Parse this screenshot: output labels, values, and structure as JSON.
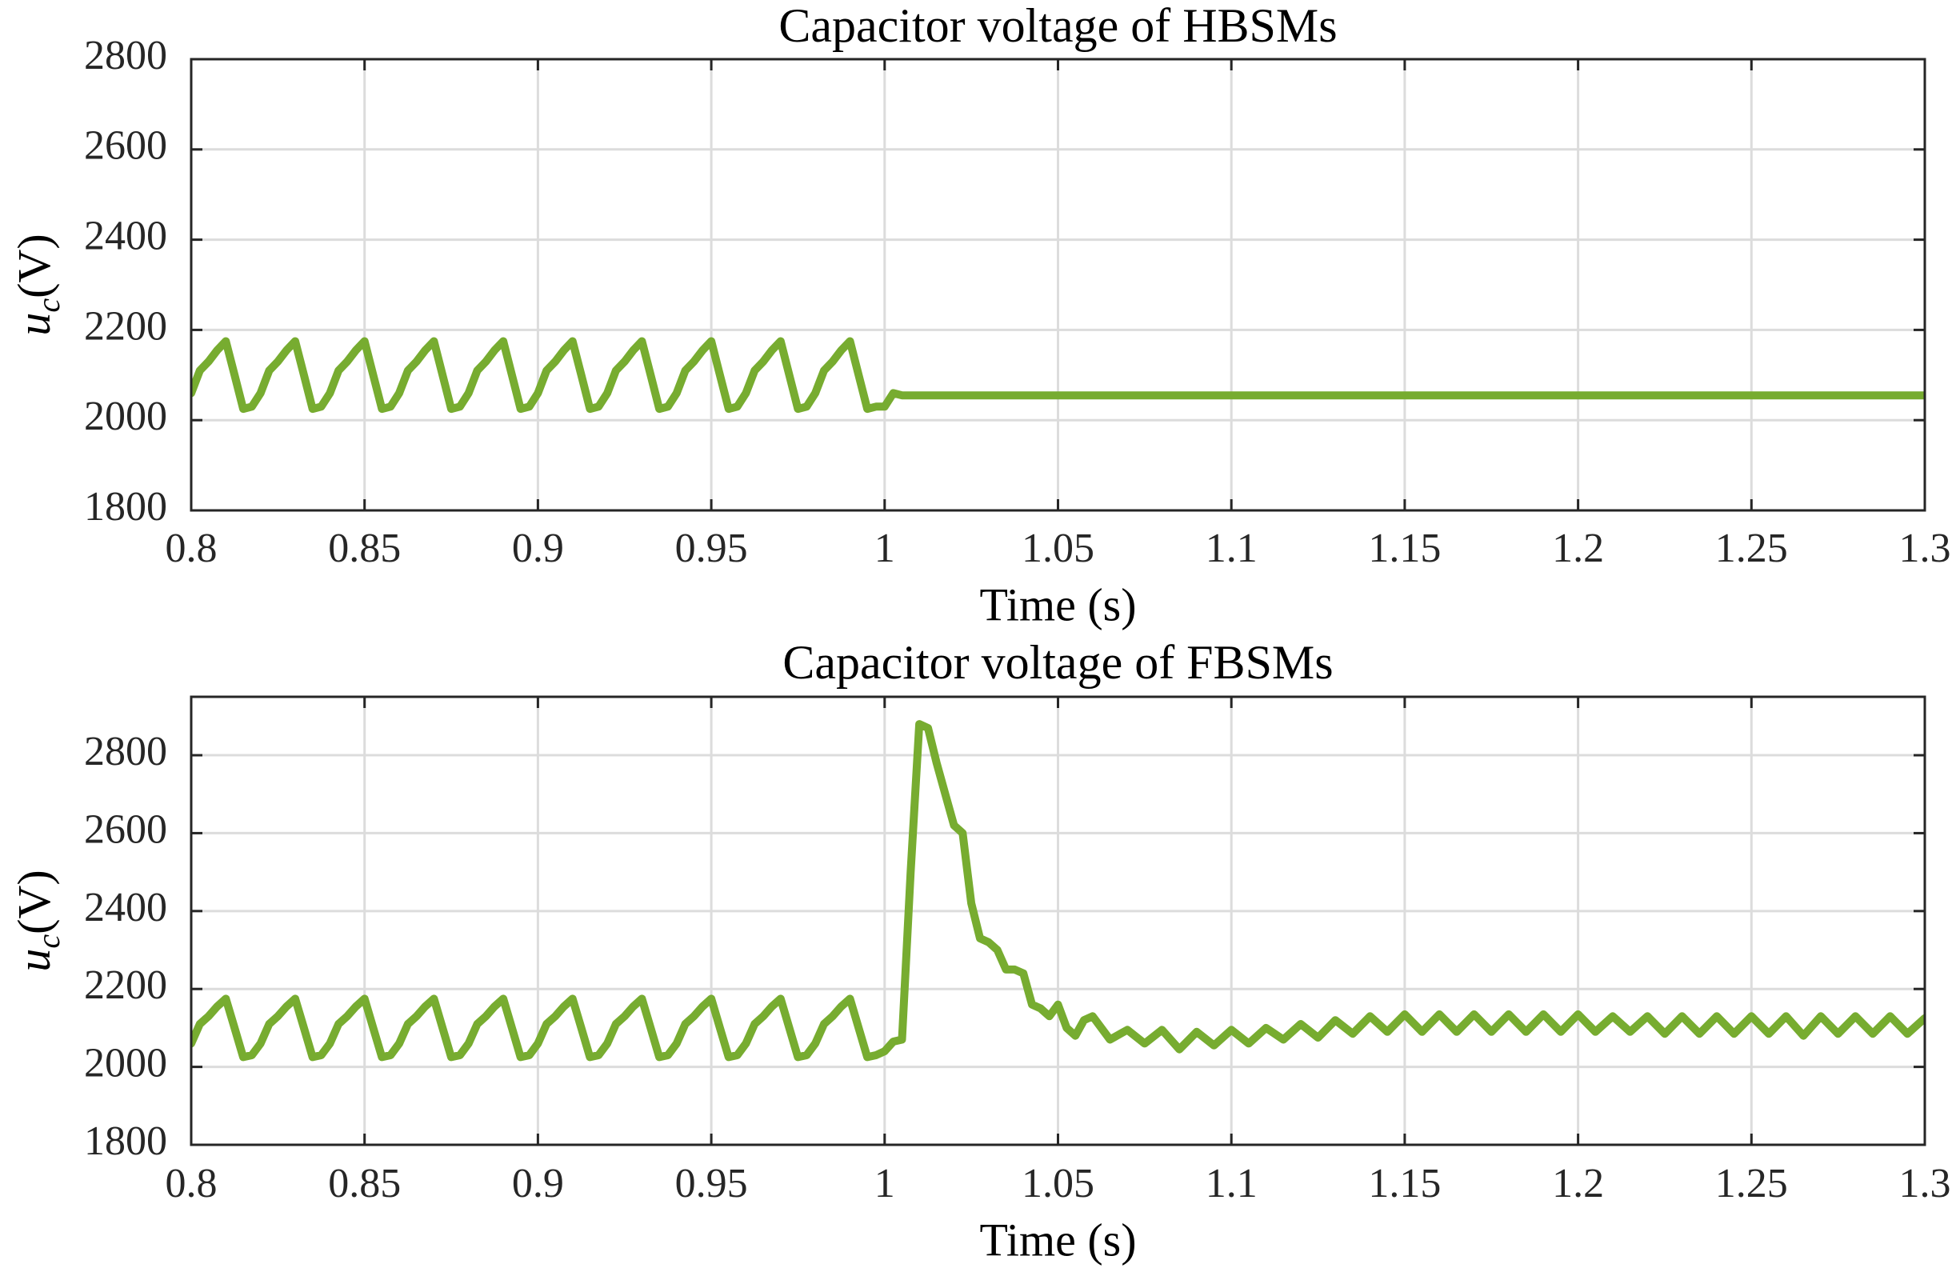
{
  "chart_data": [
    {
      "type": "line",
      "title": "Capacitor voltage of HBSMs",
      "xlabel": "Time (s)",
      "ylabel_main": "u",
      "ylabel_sub": "c",
      "ylabel_unit": "(V)",
      "xlim": [
        0.8,
        1.3
      ],
      "xticks": [
        0.8,
        0.85,
        0.9,
        0.95,
        1,
        1.05,
        1.1,
        1.15,
        1.2,
        1.25,
        1.3
      ],
      "ylim": [
        1800,
        2800
      ],
      "yticks": [
        1800,
        2000,
        2200,
        2400,
        2600,
        2800
      ],
      "grid": true,
      "color": "#77ac30",
      "x": [
        0.8,
        0.8025,
        0.805,
        0.8075,
        0.81,
        0.8125,
        0.815,
        0.8175,
        0.82,
        0.8225,
        0.825,
        0.8275,
        0.83,
        0.8325,
        0.835,
        0.8375,
        0.84,
        0.8425,
        0.845,
        0.8475,
        0.85,
        0.8525,
        0.855,
        0.8575,
        0.86,
        0.8625,
        0.865,
        0.8675,
        0.87,
        0.8725,
        0.875,
        0.8775,
        0.88,
        0.8825,
        0.885,
        0.8875,
        0.89,
        0.8925,
        0.895,
        0.8975,
        0.9,
        0.9025,
        0.905,
        0.9075,
        0.91,
        0.9125,
        0.915,
        0.9175,
        0.92,
        0.9225,
        0.925,
        0.9275,
        0.93,
        0.9325,
        0.935,
        0.9375,
        0.94,
        0.9425,
        0.945,
        0.9475,
        0.95,
        0.9525,
        0.955,
        0.9575,
        0.96,
        0.9625,
        0.965,
        0.9675,
        0.97,
        0.9725,
        0.975,
        0.9775,
        0.98,
        0.9825,
        0.985,
        0.9875,
        0.99,
        0.9925,
        0.995,
        0.9975,
        1,
        1.0025,
        1.005,
        1.3
      ],
      "values": [
        2060,
        2110,
        2130,
        2155,
        2175,
        2100,
        2025,
        2030,
        2060,
        2110,
        2130,
        2155,
        2175,
        2100,
        2025,
        2030,
        2060,
        2110,
        2130,
        2155,
        2175,
        2100,
        2025,
        2030,
        2060,
        2110,
        2130,
        2155,
        2175,
        2100,
        2025,
        2030,
        2060,
        2110,
        2130,
        2155,
        2175,
        2100,
        2025,
        2030,
        2060,
        2110,
        2130,
        2155,
        2175,
        2100,
        2025,
        2030,
        2060,
        2110,
        2130,
        2155,
        2175,
        2100,
        2025,
        2030,
        2060,
        2110,
        2130,
        2155,
        2175,
        2100,
        2025,
        2030,
        2060,
        2110,
        2130,
        2155,
        2175,
        2100,
        2025,
        2030,
        2060,
        2110,
        2130,
        2155,
        2175,
        2100,
        2025,
        2030,
        2030,
        2060,
        2055,
        2055
      ]
    },
    {
      "type": "line",
      "title": "Capacitor voltage of FBSMs",
      "xlabel": "Time (s)",
      "ylabel_main": "u",
      "ylabel_sub": "c",
      "ylabel_unit": "(V)",
      "xlim": [
        0.8,
        1.3
      ],
      "xticks": [
        0.8,
        0.85,
        0.9,
        0.95,
        1,
        1.05,
        1.1,
        1.15,
        1.2,
        1.25,
        1.3
      ],
      "ylim": [
        1800,
        2950
      ],
      "yticks": [
        1800,
        2000,
        2200,
        2400,
        2600,
        2800
      ],
      "grid": true,
      "color": "#77ac30",
      "x": [
        0.8,
        0.8025,
        0.805,
        0.8075,
        0.81,
        0.8125,
        0.815,
        0.8175,
        0.82,
        0.8225,
        0.825,
        0.8275,
        0.83,
        0.8325,
        0.835,
        0.8375,
        0.84,
        0.8425,
        0.845,
        0.8475,
        0.85,
        0.8525,
        0.855,
        0.8575,
        0.86,
        0.8625,
        0.865,
        0.8675,
        0.87,
        0.8725,
        0.875,
        0.8775,
        0.88,
        0.8825,
        0.885,
        0.8875,
        0.89,
        0.8925,
        0.895,
        0.8975,
        0.9,
        0.9025,
        0.905,
        0.9075,
        0.91,
        0.9125,
        0.915,
        0.9175,
        0.92,
        0.9225,
        0.925,
        0.9275,
        0.93,
        0.9325,
        0.935,
        0.9375,
        0.94,
        0.9425,
        0.945,
        0.9475,
        0.95,
        0.9525,
        0.955,
        0.9575,
        0.96,
        0.9625,
        0.965,
        0.9675,
        0.97,
        0.9725,
        0.975,
        0.9775,
        0.98,
        0.9825,
        0.985,
        0.9875,
        0.99,
        0.9925,
        0.995,
        0.9975,
        1,
        1.0025,
        1.005,
        1.0075,
        1.01,
        1.0125,
        1.015,
        1.0175,
        1.02,
        1.0225,
        1.025,
        1.0275,
        1.03,
        1.0325,
        1.035,
        1.0375,
        1.04,
        1.0425,
        1.045,
        1.0475,
        1.05,
        1.0525,
        1.055,
        1.0575,
        1.06,
        1.065,
        1.07,
        1.075,
        1.08,
        1.085,
        1.09,
        1.095,
        1.1,
        1.105,
        1.11,
        1.115,
        1.12,
        1.125,
        1.13,
        1.135,
        1.14,
        1.145,
        1.15,
        1.155,
        1.16,
        1.165,
        1.17,
        1.175,
        1.18,
        1.185,
        1.19,
        1.195,
        1.2,
        1.205,
        1.21,
        1.215,
        1.22,
        1.225,
        1.23,
        1.235,
        1.24,
        1.245,
        1.25,
        1.255,
        1.26,
        1.265,
        1.27,
        1.275,
        1.28,
        1.285,
        1.29,
        1.295,
        1.3
      ],
      "values": [
        2060,
        2110,
        2130,
        2155,
        2175,
        2100,
        2025,
        2030,
        2060,
        2110,
        2130,
        2155,
        2175,
        2100,
        2025,
        2030,
        2060,
        2110,
        2130,
        2155,
        2175,
        2100,
        2025,
        2030,
        2060,
        2110,
        2130,
        2155,
        2175,
        2100,
        2025,
        2030,
        2060,
        2110,
        2130,
        2155,
        2175,
        2100,
        2025,
        2030,
        2060,
        2110,
        2130,
        2155,
        2175,
        2100,
        2025,
        2030,
        2060,
        2110,
        2130,
        2155,
        2175,
        2100,
        2025,
        2030,
        2060,
        2110,
        2130,
        2155,
        2175,
        2100,
        2025,
        2030,
        2060,
        2110,
        2130,
        2155,
        2175,
        2100,
        2025,
        2030,
        2060,
        2110,
        2130,
        2155,
        2175,
        2100,
        2025,
        2030,
        2040,
        2065,
        2070,
        2500,
        2880,
        2870,
        2780,
        2700,
        2620,
        2600,
        2420,
        2330,
        2320,
        2300,
        2250,
        2250,
        2240,
        2160,
        2150,
        2130,
        2160,
        2100,
        2080,
        2120,
        2130,
        2070,
        2095,
        2060,
        2095,
        2045,
        2090,
        2055,
        2095,
        2060,
        2100,
        2070,
        2110,
        2075,
        2120,
        2085,
        2130,
        2090,
        2135,
        2090,
        2135,
        2090,
        2135,
        2090,
        2135,
        2090,
        2135,
        2090,
        2135,
        2090,
        2130,
        2090,
        2130,
        2085,
        2130,
        2085,
        2130,
        2085,
        2130,
        2085,
        2130,
        2080,
        2130,
        2085,
        2130,
        2085,
        2130,
        2085,
        2125
      ]
    }
  ]
}
